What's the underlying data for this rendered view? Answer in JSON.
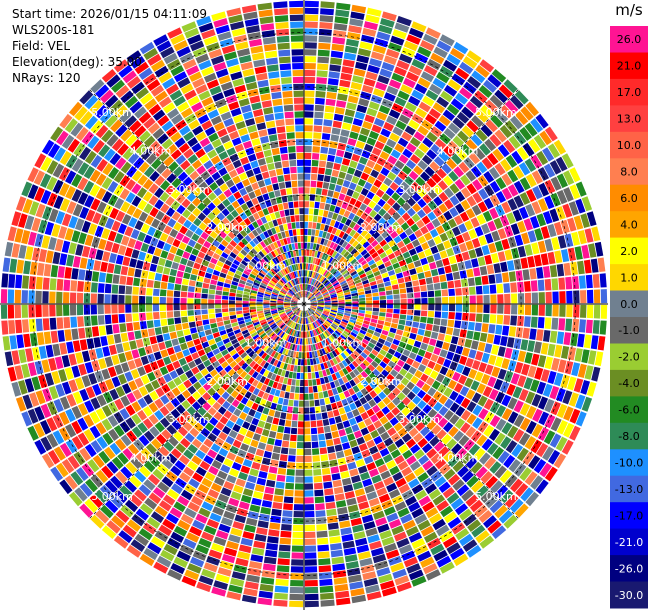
{
  "header": {
    "start_time": "Start time: 2026/01/15 04:11:09",
    "instrument": "WLS200s-181",
    "field": "Field: VEL",
    "elevation": "Elevation(deg): 35.00",
    "nrays": "NRays: 120"
  },
  "colorbar": {
    "unit": "m/s",
    "levels": [
      {
        "label": "26.0",
        "color": "#ff1493"
      },
      {
        "label": "21.0",
        "color": "#ff0000"
      },
      {
        "label": "17.0",
        "color": "#ff2a2a"
      },
      {
        "label": "13.0",
        "color": "#ff4040"
      },
      {
        "label": "10.0",
        "color": "#ff6347"
      },
      {
        "label": "8.0",
        "color": "#ff7f50"
      },
      {
        "label": "6.0",
        "color": "#ff8c00"
      },
      {
        "label": "4.0",
        "color": "#ffa500"
      },
      {
        "label": "2.0",
        "color": "#ffff00"
      },
      {
        "label": "1.0",
        "color": "#ffd700"
      },
      {
        "label": "0.0",
        "color": "#708090"
      },
      {
        "label": "-1.0",
        "color": "#696969"
      },
      {
        "label": "-2.0",
        "color": "#9acd32"
      },
      {
        "label": "-4.0",
        "color": "#6b8e23"
      },
      {
        "label": "-6.0",
        "color": "#228b22"
      },
      {
        "label": "-8.0",
        "color": "#2e8b57"
      },
      {
        "label": "-10.0",
        "color": "#1e90ff"
      },
      {
        "label": "-13.0",
        "color": "#4169e1"
      },
      {
        "label": "-17.0",
        "color": "#0000ff"
      },
      {
        "label": "-21.0",
        "color": "#0000cd"
      },
      {
        "label": "-26.0",
        "color": "#000080"
      },
      {
        "label": "-30.0",
        "color": "#191970"
      }
    ]
  },
  "chart_data": {
    "type": "heatmap",
    "plot_kind": "polar PPI scan",
    "field": "VEL",
    "unit": "m/s",
    "elevation_deg": 35.0,
    "n_rays": 120,
    "range_ring_labels": [
      "1.00km",
      "2.00km",
      "3.00km",
      "4.00km",
      "5.00km"
    ],
    "range_rings_km": [
      1,
      2,
      3,
      4,
      5
    ],
    "max_range_km": 5.6,
    "grid_azimuth_step_deg": 45,
    "colorbar_range": [
      -30.0,
      26.0
    ],
    "value_levels": [
      -30,
      -26,
      -21,
      -17,
      -13,
      -10,
      -8,
      -6,
      -4,
      -2,
      -1,
      0,
      1,
      2,
      4,
      6,
      8,
      10,
      13,
      17,
      21,
      26
    ]
  }
}
